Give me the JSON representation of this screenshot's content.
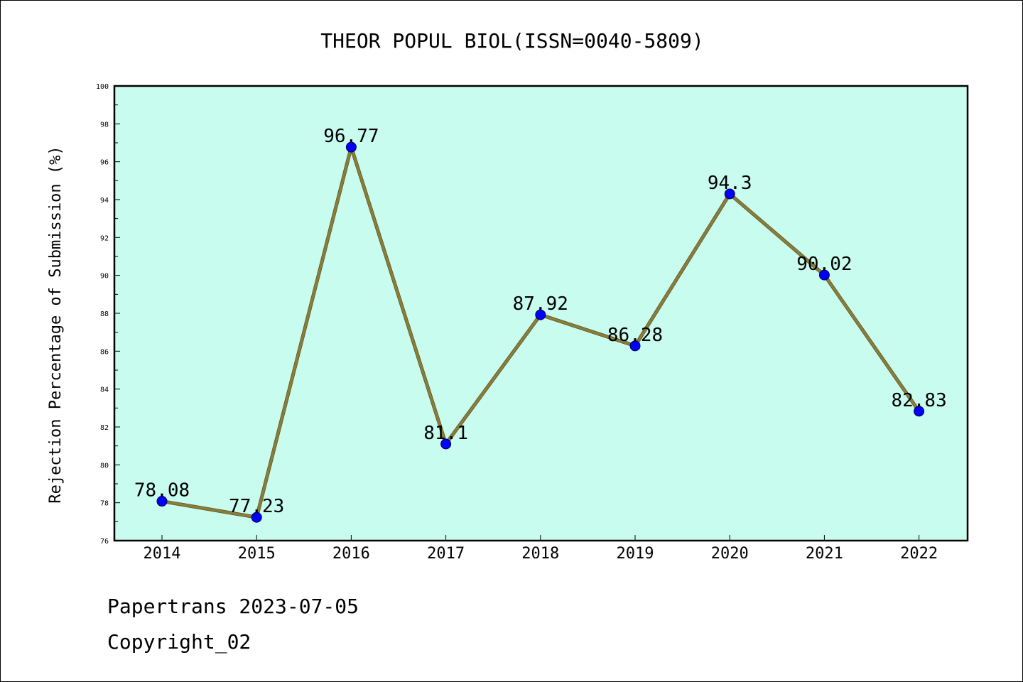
{
  "chart_data": {
    "type": "line",
    "title": "THEOR POPUL BIOL(ISSN=0040-5809)",
    "xlabel": "",
    "ylabel": "Rejection Percentage of Submission (%)",
    "categories": [
      "2014",
      "2015",
      "2016",
      "2017",
      "2018",
      "2019",
      "2020",
      "2021",
      "2022"
    ],
    "series": [
      {
        "values": [
          78.08,
          77.23,
          96.77,
          81.1,
          87.92,
          86.28,
          94.3,
          90.02,
          82.83
        ],
        "labels": [
          "78.08",
          "77.23",
          "96.77",
          "81.1",
          "87.92",
          "86.28",
          "94.3",
          "90.02",
          "82.83"
        ]
      }
    ],
    "ylim": [
      76,
      100
    ],
    "yticks": [
      "76",
      "78",
      "80",
      "82",
      "84",
      "86",
      "88",
      "90",
      "92",
      "94",
      "96",
      "98",
      "100"
    ],
    "grid": false,
    "legend": "none",
    "colors": {
      "plot_background": "#c8fcee",
      "line": "#8b7d3a",
      "marker": "#0000ff"
    }
  },
  "footer": {
    "line1": "Papertrans 2023-07-05",
    "line2": "Copyright_02"
  }
}
